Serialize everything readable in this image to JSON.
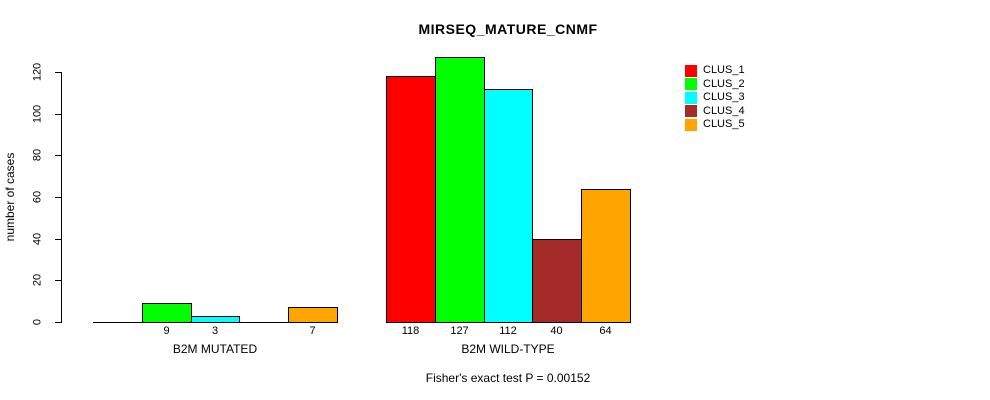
{
  "chart_data": {
    "type": "bar",
    "title": "MIRSEQ_MATURE_CNMF",
    "xlabel": "",
    "ylabel": "number of cases",
    "annotation": "Fisher's exact test P = 0.00152",
    "ylim": [
      0,
      120
    ],
    "yticks": [
      0,
      20,
      40,
      60,
      80,
      100,
      120
    ],
    "grid": false,
    "legend_position": "top-right",
    "categories": [
      "B2M MUTATED",
      "B2M WILD-TYPE"
    ],
    "series": [
      {
        "name": "CLUS_1",
        "color": "#FF0000",
        "values": [
          0,
          118
        ]
      },
      {
        "name": "CLUS_2",
        "color": "#00FF00",
        "values": [
          9,
          127
        ]
      },
      {
        "name": "CLUS_3",
        "color": "#00FFFF",
        "values": [
          3,
          112
        ]
      },
      {
        "name": "CLUS_4",
        "color": "#A52A2A",
        "values": [
          0,
          40
        ]
      },
      {
        "name": "CLUS_5",
        "color": "#FFA500",
        "values": [
          7,
          64
        ]
      }
    ],
    "bar_value_labels": [
      [
        "",
        "9",
        "3",
        "",
        "7"
      ],
      [
        "118",
        "127",
        "112",
        "40",
        "64"
      ]
    ],
    "background": "#FFFFFF",
    "axis_color": "#000000"
  }
}
